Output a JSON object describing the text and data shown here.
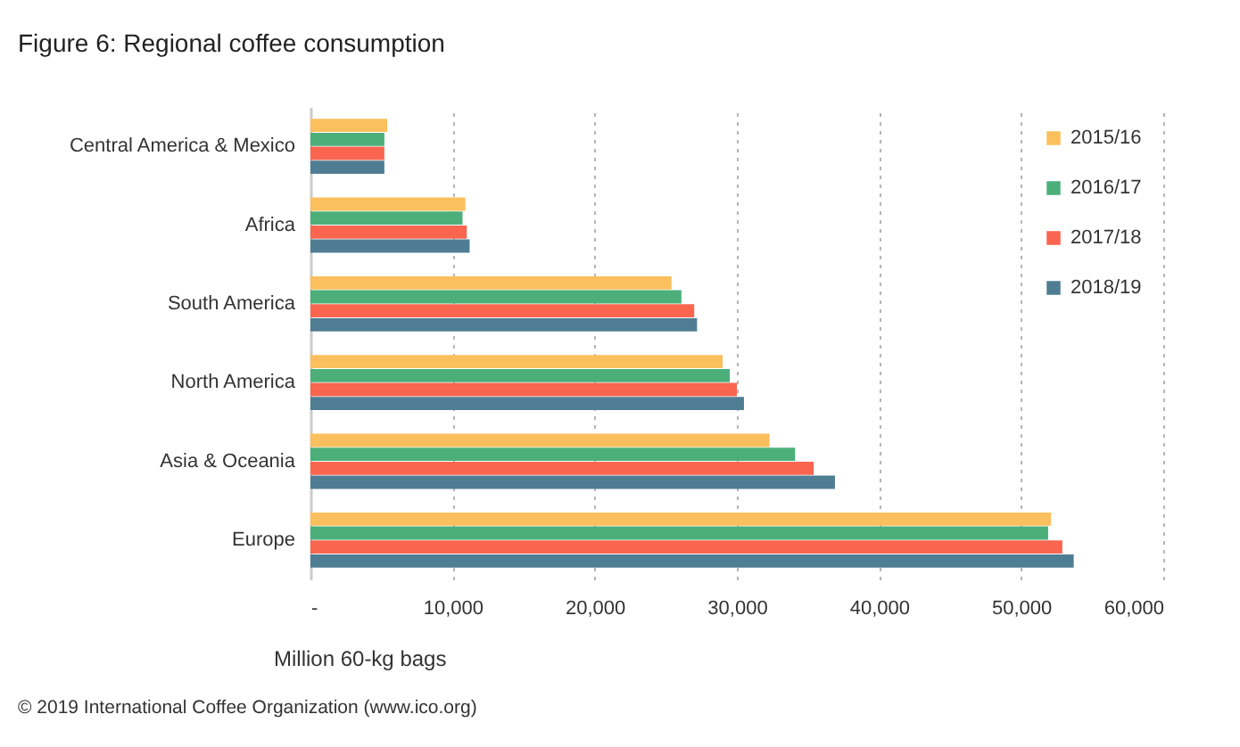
{
  "chart_data": {
    "type": "bar",
    "orientation": "horizontal",
    "title": "Figure 6: Regional coffee consumption",
    "xlabel": "Million 60-kg bags",
    "annotations": [
      "© 2019 International Coffee Organization (www.ico.org)"
    ],
    "categories": [
      "Central America & Mexico",
      "Africa",
      "South America",
      "North America",
      "Asia & Oceania",
      "Europe"
    ],
    "series": [
      {
        "name": "2015/16",
        "color": "#fbbf5d",
        "values": [
          5400,
          10900,
          25400,
          29000,
          32300,
          52100
        ]
      },
      {
        "name": "2016/17",
        "color": "#4caf7a",
        "values": [
          5200,
          10700,
          26100,
          29500,
          34100,
          51900
        ]
      },
      {
        "name": "2017/18",
        "color": "#fa6550",
        "values": [
          5200,
          11000,
          27000,
          30000,
          35400,
          52900
        ]
      },
      {
        "name": "2018/19",
        "color": "#4f7d94",
        "values": [
          5200,
          11200,
          27200,
          30500,
          36900,
          53700
        ]
      }
    ],
    "xlim": [
      0,
      60000
    ],
    "xticks": [
      {
        "value": 0,
        "label": "-"
      },
      {
        "value": 10000,
        "label": "10,000"
      },
      {
        "value": 20000,
        "label": "20,000"
      },
      {
        "value": 30000,
        "label": "30,000"
      },
      {
        "value": 40000,
        "label": "40,000"
      },
      {
        "value": 50000,
        "label": "50,000"
      },
      {
        "value": 60000,
        "label": "60,000"
      }
    ],
    "grid": "x",
    "legend": "top right"
  }
}
